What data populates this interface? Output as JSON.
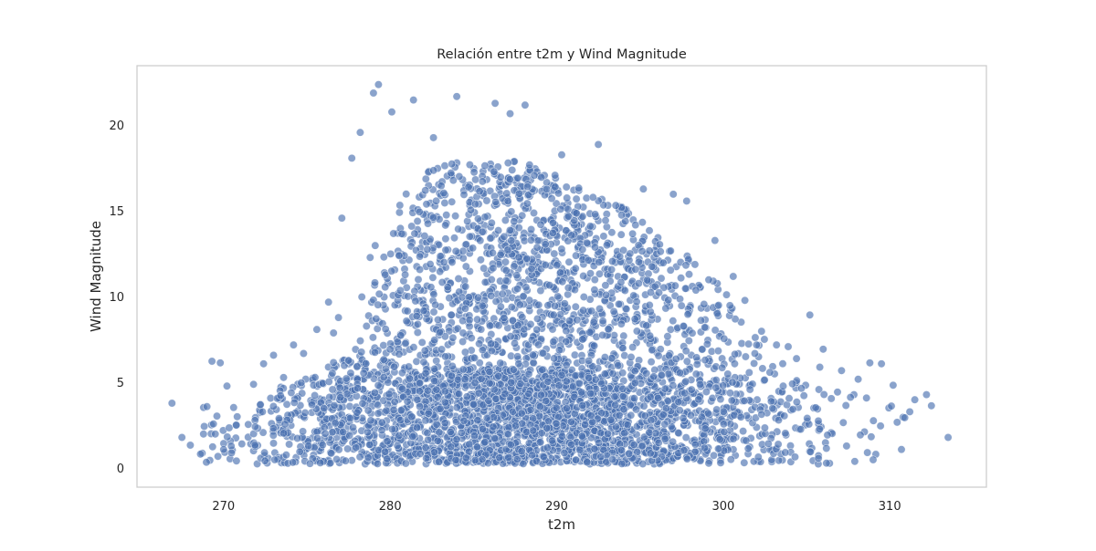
{
  "chart_data": {
    "type": "scatter",
    "title": "Relación entre t2m y Wind Magnitude",
    "xlabel": "t2m",
    "ylabel": "Wind Magnitude",
    "xlim": [
      264.8,
      315.8
    ],
    "ylim": [
      -1.1,
      23.5
    ],
    "xticks": [
      270,
      280,
      290,
      300,
      310
    ],
    "xtick_labels": [
      "270",
      "280",
      "290",
      "300",
      "310"
    ],
    "yticks": [
      0,
      5,
      10,
      15,
      20
    ],
    "ytick_labels": [
      "0",
      "5",
      "10",
      "15",
      "20"
    ],
    "grid": false,
    "legend": "none",
    "style": {
      "marker_color": "#4c72b0",
      "marker_edge_color": "#ffffff",
      "marker_alpha": 0.65,
      "axes_edge_color": "#cccccc",
      "background": "#ffffff"
    },
    "points": [
      [
        266.9,
        3.8
      ],
      [
        267.5,
        1.8
      ],
      [
        268.0,
        1.35
      ],
      [
        268.8,
        3.55
      ],
      [
        269.0,
        3.6
      ],
      [
        269.3,
        6.25
      ],
      [
        269.8,
        6.15
      ],
      [
        270.2,
        4.8
      ],
      [
        269.6,
        3.05
      ],
      [
        270.6,
        3.55
      ],
      [
        269.5,
        2.0
      ],
      [
        270.0,
        1.1
      ],
      [
        312.5,
        3.65
      ],
      [
        313.5,
        1.8
      ],
      [
        312.2,
        4.3
      ],
      [
        311.5,
        4.0
      ],
      [
        310.9,
        2.95
      ],
      [
        310.7,
        1.1
      ],
      [
        310.2,
        4.85
      ],
      [
        309.5,
        6.1
      ],
      [
        308.8,
        6.15
      ],
      [
        309.0,
        0.5
      ],
      [
        311.2,
        3.3
      ],
      [
        305.2,
        8.95
      ],
      [
        306.0,
        6.95
      ],
      [
        279.3,
        22.4
      ],
      [
        281.4,
        21.5
      ],
      [
        284.0,
        21.7
      ],
      [
        286.3,
        21.3
      ],
      [
        288.1,
        21.2
      ],
      [
        287.2,
        20.7
      ],
      [
        279.0,
        21.9
      ],
      [
        280.1,
        20.8
      ],
      [
        278.2,
        19.6
      ],
      [
        282.6,
        19.3
      ],
      [
        277.7,
        18.1
      ],
      [
        290.3,
        18.3
      ],
      [
        292.5,
        18.9
      ],
      [
        295.2,
        16.3
      ],
      [
        297.0,
        16.0
      ],
      [
        297.8,
        15.6
      ],
      [
        299.5,
        13.3
      ],
      [
        300.6,
        11.2
      ],
      [
        301.3,
        9.8
      ],
      [
        302.3,
        8.0
      ],
      [
        303.2,
        7.2
      ],
      [
        303.9,
        7.1
      ],
      [
        277.1,
        14.6
      ],
      [
        276.3,
        9.7
      ],
      [
        275.6,
        8.1
      ],
      [
        274.2,
        7.2
      ],
      [
        273.0,
        6.6
      ],
      [
        272.4,
        6.1
      ],
      [
        271.8,
        4.9
      ],
      [
        273.6,
        5.3
      ],
      [
        274.8,
        6.7
      ],
      [
        276.6,
        7.9
      ],
      [
        278.3,
        10.0
      ],
      [
        279.1,
        13.0
      ],
      [
        278.8,
        12.3
      ],
      [
        280.2,
        13.7
      ],
      [
        279.7,
        11.3
      ],
      [
        276.9,
        8.8
      ],
      [
        302.8,
        5.6
      ],
      [
        304.4,
        6.4
      ],
      [
        307.1,
        5.7
      ],
      [
        308.1,
        5.2
      ],
      [
        308.6,
        4.1
      ],
      [
        307.9,
        0.4
      ],
      [
        306.2,
        0.3
      ],
      [
        305.8,
        5.9
      ],
      [
        303.6,
        4.8
      ],
      [
        301.9,
        6.7
      ],
      [
        300.4,
        9.5
      ],
      [
        298.3,
        11.9
      ]
    ]
  }
}
